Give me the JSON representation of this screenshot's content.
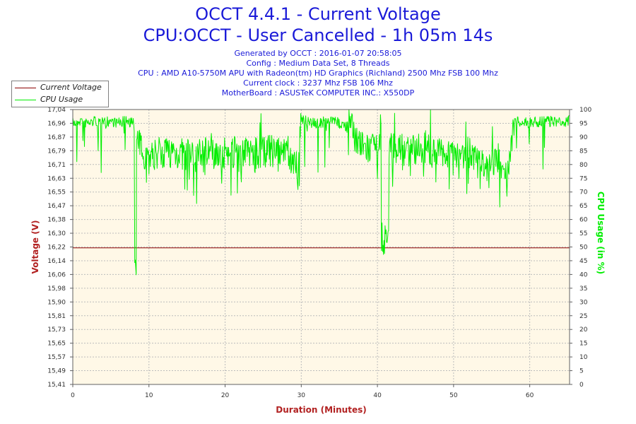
{
  "colors": {
    "title": "#1a1ad8",
    "voltage": "#8b0000",
    "cpu": "#00ee00",
    "plot_bg": "#fff8e7",
    "grid": "#c8c8c8"
  },
  "header": {
    "title_line1": "OCCT 4.4.1 - Current Voltage",
    "title_line2": "CPU:OCCT - User Cancelled - 1h 05m 14s",
    "info": [
      "Generated by OCCT : 2016-01-07 20:58:05",
      "Config : Medium Data Set, 8 Threads",
      "CPU : AMD A10-5750M APU with Radeon(tm) HD Graphics (Richland) 2500 Mhz FSB 100 Mhz",
      "Current clock : 3237 Mhz FSB 106 Mhz",
      "MotherBoard : ASUSTeK COMPUTER INC.: X550DP"
    ]
  },
  "legend": {
    "voltage_label": "Current Voltage",
    "cpu_label": "CPU Usage"
  },
  "chart_data": {
    "type": "line",
    "xlabel": "Duration (Minutes)",
    "ylabel_left": "Voltage (V)",
    "ylabel_right": "CPU Usage (in %)",
    "xlim": [
      0,
      65.23
    ],
    "xticks": [
      0,
      10,
      20,
      30,
      40,
      50,
      60
    ],
    "ylim_left": [
      15.41,
      17.04
    ],
    "yticks_left": [
      "15,41",
      "15,49",
      "15,57",
      "15,65",
      "15,73",
      "15,81",
      "15,90",
      "15,98",
      "16,06",
      "16,14",
      "16,22",
      "16,30",
      "16,38",
      "16,47",
      "16,55",
      "16,63",
      "16,71",
      "16,79",
      "16,87",
      "16,96",
      "17,04"
    ],
    "ylim_right": [
      0,
      100
    ],
    "yticks_right": [
      0,
      5,
      10,
      15,
      20,
      25,
      30,
      35,
      40,
      45,
      50,
      55,
      60,
      65,
      70,
      75,
      80,
      85,
      90,
      95,
      100
    ],
    "grid": true,
    "legend_position": "top-left",
    "series": [
      {
        "name": "Current Voltage",
        "axis": "left",
        "x": [
          0,
          65.23
        ],
        "values": [
          16.22,
          16.22
        ]
      },
      {
        "name": "CPU Usage",
        "axis": "right",
        "x": [
          0,
          1,
          2,
          3,
          4,
          5,
          6,
          7,
          8,
          8.2,
          8.5,
          9,
          10,
          11,
          12,
          14,
          16,
          18,
          20,
          22,
          24,
          26,
          28,
          29.5,
          30,
          32,
          34,
          36,
          38,
          40,
          41,
          42,
          44,
          46,
          48,
          50,
          52,
          54,
          56,
          57,
          58,
          60,
          62,
          64,
          65.23
        ],
        "values": [
          97,
          98,
          97,
          98,
          97,
          98,
          97,
          98,
          97,
          41,
          88,
          86,
          82,
          84,
          85,
          84,
          83,
          86,
          84,
          85,
          84,
          85,
          83,
          80,
          98,
          97,
          98,
          96,
          86,
          85,
          53,
          86,
          85,
          86,
          84,
          85,
          84,
          78,
          82,
          74,
          98,
          97,
          98,
          97,
          98
        ]
      }
    ]
  }
}
